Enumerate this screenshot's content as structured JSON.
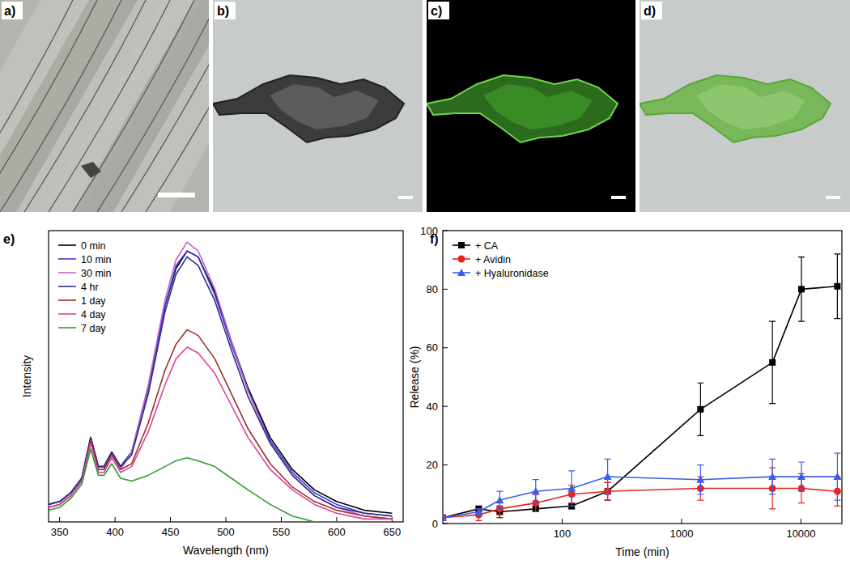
{
  "images": [
    {
      "label": "a)"
    },
    {
      "label": "b)"
    },
    {
      "label": "c)"
    },
    {
      "label": "d)"
    }
  ],
  "chart_data": [
    {
      "type": "line",
      "title": "e)",
      "x_label": "Wavelength (nm)",
      "y_label": "Intensity",
      "x": [
        340,
        350,
        360,
        370,
        378,
        385,
        390,
        397,
        405,
        415,
        430,
        445,
        455,
        465,
        475,
        490,
        505,
        520,
        540,
        560,
        580,
        600,
        625,
        650
      ],
      "xlim": [
        340,
        660
      ],
      "xticks": [
        350,
        400,
        450,
        500,
        550,
        600,
        650
      ],
      "ylim": [
        0,
        100
      ],
      "tick_labels": "x",
      "legend": "top-left",
      "series": [
        {
          "name": "0 min",
          "color": "#000000",
          "values": [
            6,
            7,
            10,
            15,
            29,
            19,
            19,
            24,
            19,
            24,
            46,
            74,
            87,
            93,
            91,
            79,
            62,
            46,
            29,
            18,
            11,
            7,
            4,
            3
          ]
        },
        {
          "name": "10 min",
          "color": "#3b3bd6",
          "values": [
            6,
            7,
            10,
            15,
            29,
            19,
            19,
            24,
            19,
            24,
            46,
            74,
            88,
            93,
            91,
            78,
            61,
            45,
            28,
            17,
            10,
            6,
            3,
            2
          ]
        },
        {
          "name": "30 min",
          "color": "#c860c8",
          "values": [
            5,
            6,
            9,
            14,
            28,
            18,
            18,
            23,
            18,
            24,
            47,
            76,
            90,
            96,
            93,
            80,
            62,
            45,
            27,
            16,
            9,
            5,
            2,
            1
          ]
        },
        {
          "name": "4 hr",
          "color": "#2e2e8c",
          "values": [
            6,
            7,
            10,
            15,
            29,
            19,
            19,
            24,
            19,
            23,
            44,
            72,
            85,
            91,
            88,
            76,
            59,
            43,
            27,
            16,
            9,
            5,
            3,
            2
          ]
        },
        {
          "name": "1 day",
          "color": "#99332e",
          "values": [
            5,
            6,
            9,
            14,
            28,
            18,
            18,
            23,
            18,
            20,
            34,
            52,
            61,
            66,
            64,
            56,
            44,
            32,
            20,
            12,
            7,
            4,
            2,
            1
          ]
        },
        {
          "name": "4 day",
          "color": "#e0409c",
          "values": [
            5,
            6,
            9,
            14,
            27,
            17,
            17,
            22,
            17,
            19,
            31,
            47,
            56,
            60,
            58,
            51,
            40,
            29,
            18,
            11,
            6,
            3,
            1,
            1
          ]
        },
        {
          "name": "7 day",
          "color": "#2f9e2f",
          "values": [
            4,
            5,
            8,
            13,
            25,
            16,
            16,
            20,
            15,
            14,
            16,
            19,
            21,
            22,
            21,
            19,
            15,
            11,
            6,
            2,
            0,
            0,
            0,
            0
          ]
        }
      ]
    },
    {
      "type": "line",
      "title": "f)",
      "x_label": "Time (min)",
      "y_label": "Release (%)",
      "x": [
        10,
        20,
        30,
        60,
        120,
        240,
        1440,
        5760,
        10080,
        20160
      ],
      "log": "x",
      "xlim": [
        10,
        22000
      ],
      "xticks": [
        100,
        1000,
        10000
      ],
      "ylim": [
        0,
        100
      ],
      "yticks": [
        0,
        20,
        40,
        60,
        80,
        100
      ],
      "legend": "top-left",
      "series": [
        {
          "name": "+ CA",
          "color": "#000000",
          "marker": "square",
          "values": [
            2,
            5,
            4,
            5,
            6,
            11,
            39,
            55,
            80,
            81
          ],
          "errors": [
            0,
            1,
            2,
            1,
            1,
            3,
            9,
            14,
            11,
            11
          ]
        },
        {
          "name": "+ Avidin",
          "color": "#e8231f",
          "marker": "circle",
          "values": [
            2,
            3,
            5,
            7,
            10,
            11,
            12,
            12,
            12,
            11
          ],
          "errors": [
            0,
            2,
            2,
            3,
            3,
            3,
            4,
            7,
            5,
            5
          ]
        },
        {
          "name": "+ Hyaluronidase",
          "color": "#3a5ee6",
          "marker": "triangle",
          "values": [
            2,
            4,
            8,
            11,
            12,
            16,
            15,
            16,
            16,
            16
          ],
          "errors": [
            0,
            1,
            3,
            4,
            6,
            6,
            5,
            6,
            5,
            8
          ]
        }
      ]
    }
  ]
}
